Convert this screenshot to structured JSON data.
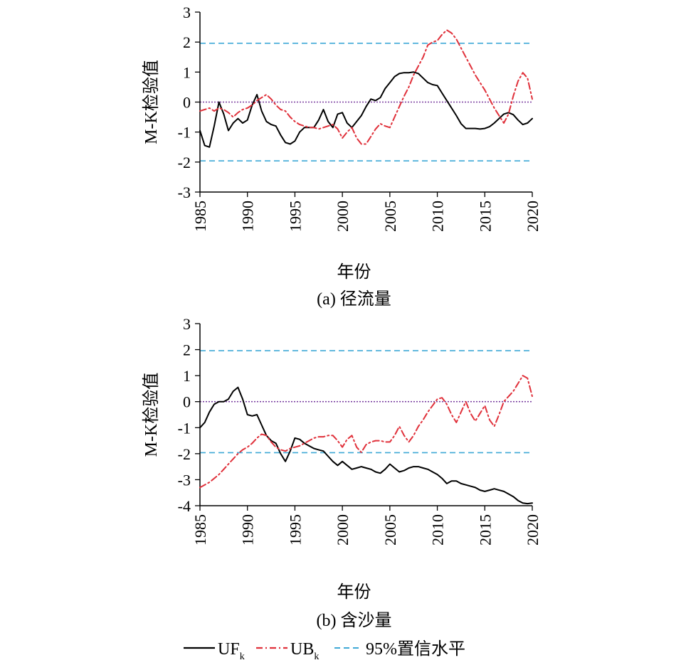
{
  "legend": {
    "uf_label": "UF",
    "uf_sub": "k",
    "ub_label": "UB",
    "ub_sub": "k",
    "conf_label": "95%置信水平"
  },
  "colors": {
    "uf": "#000000",
    "ub": "#e0303a",
    "conf": "#3fa9d6",
    "zero": "#7a3fa0"
  },
  "chart_data": [
    {
      "type": "line",
      "caption": "(a) 径流量",
      "xlabel": "年份",
      "ylabel": "M-K检验值",
      "xlim": [
        1985,
        2020
      ],
      "ylim": [
        -3,
        3
      ],
      "xticks": [
        1985,
        1990,
        1995,
        2000,
        2005,
        2010,
        2015,
        2020
      ],
      "yticks": [
        -3,
        -2,
        -1,
        0,
        1,
        2,
        3
      ],
      "confidence_lines": [
        1.96,
        -1.96
      ],
      "zero_line": 0,
      "series": [
        {
          "name": "UF",
          "style": "solid",
          "x": [
            1985,
            1985.5,
            1986,
            1986.5,
            1987,
            1987.5,
            1988,
            1988.5,
            1989,
            1989.5,
            1990,
            1990.5,
            1991,
            1991.5,
            1992,
            1992.5,
            1993,
            1993.5,
            1994,
            1994.5,
            1995,
            1995.5,
            1996,
            1996.5,
            1997,
            1997.5,
            1998,
            1998.5,
            1999,
            1999.5,
            2000,
            2000.5,
            2001,
            2001.5,
            2002,
            2002.5,
            2003,
            2003.5,
            2004,
            2004.5,
            2005,
            2005.5,
            2006,
            2006.5,
            2007,
            2007.5,
            2008,
            2008.5,
            2009,
            2009.5,
            2010,
            2010.5,
            2011,
            2011.5,
            2012,
            2012.5,
            2013,
            2013.5,
            2014,
            2014.5,
            2015,
            2015.5,
            2016,
            2016.5,
            2017,
            2017.5,
            2018,
            2018.5,
            2019,
            2019.5,
            2020
          ],
          "y": [
            -0.95,
            -1.45,
            -1.5,
            -0.8,
            0.0,
            -0.4,
            -0.95,
            -0.7,
            -0.55,
            -0.7,
            -0.6,
            -0.1,
            0.25,
            -0.3,
            -0.65,
            -0.75,
            -0.8,
            -1.1,
            -1.35,
            -1.4,
            -1.3,
            -1.0,
            -0.85,
            -0.85,
            -0.85,
            -0.6,
            -0.25,
            -0.65,
            -0.85,
            -0.4,
            -0.35,
            -0.7,
            -0.85,
            -0.65,
            -0.45,
            -0.15,
            0.1,
            0.05,
            0.15,
            0.45,
            0.65,
            0.85,
            0.95,
            0.98,
            0.98,
            1.0,
            0.95,
            0.8,
            0.65,
            0.58,
            0.55,
            0.3,
            0.05,
            -0.2,
            -0.45,
            -0.72,
            -0.88,
            -0.88,
            -0.88,
            -0.9,
            -0.88,
            -0.82,
            -0.7,
            -0.55,
            -0.4,
            -0.35,
            -0.42,
            -0.6,
            -0.75,
            -0.7,
            -0.55
          ]
        },
        {
          "name": "UB",
          "style": "dashdot",
          "x": [
            1985,
            1985.5,
            1986,
            1986.5,
            1987,
            1987.5,
            1988,
            1988.5,
            1989,
            1989.5,
            1990,
            1990.5,
            1991,
            1991.5,
            1992,
            1992.5,
            1993,
            1993.5,
            1994,
            1994.5,
            1995,
            1995.5,
            1996,
            1996.5,
            1997,
            1997.5,
            1998,
            1998.5,
            1999,
            1999.5,
            2000,
            2000.5,
            2001,
            2001.5,
            2002,
            2002.5,
            2003,
            2003.5,
            2004,
            2004.5,
            2005,
            2005.5,
            2006,
            2006.5,
            2007,
            2007.5,
            2008,
            2008.5,
            2009,
            2009.5,
            2010,
            2010.5,
            2011,
            2011.5,
            2012,
            2012.5,
            2013,
            2013.5,
            2014,
            2014.5,
            2015,
            2015.5,
            2016,
            2016.5,
            2017,
            2017.5,
            2018,
            2018.5,
            2019,
            2019.5,
            2020
          ],
          "y": [
            -0.3,
            -0.25,
            -0.2,
            -0.3,
            -0.2,
            -0.25,
            -0.35,
            -0.5,
            -0.35,
            -0.25,
            -0.2,
            -0.1,
            0.05,
            0.15,
            0.25,
            0.1,
            -0.1,
            -0.25,
            -0.3,
            -0.5,
            -0.65,
            -0.75,
            -0.8,
            -0.85,
            -0.85,
            -0.9,
            -0.85,
            -0.8,
            -0.75,
            -0.9,
            -1.2,
            -1.0,
            -0.85,
            -1.2,
            -1.4,
            -1.4,
            -1.15,
            -0.9,
            -0.72,
            -0.8,
            -0.85,
            -0.5,
            -0.15,
            0.2,
            0.5,
            0.9,
            1.2,
            1.5,
            1.9,
            2.0,
            2.05,
            2.25,
            2.4,
            2.3,
            2.1,
            1.8,
            1.5,
            1.2,
            0.9,
            0.65,
            0.4,
            0.1,
            -0.2,
            -0.45,
            -0.7,
            -0.4,
            0.2,
            0.7,
            0.98,
            0.8,
            0.1
          ]
        }
      ]
    },
    {
      "type": "line",
      "caption": "(b) 含沙量",
      "xlabel": "年份",
      "ylabel": "M-K检验值",
      "xlim": [
        1985,
        2020
      ],
      "ylim": [
        -4,
        3
      ],
      "xticks": [
        1985,
        1990,
        1995,
        2000,
        2005,
        2010,
        2015,
        2020
      ],
      "yticks": [
        -4,
        -3,
        -2,
        -1,
        0,
        1,
        2,
        3
      ],
      "confidence_lines": [
        1.96,
        -1.96
      ],
      "zero_line": 0,
      "series": [
        {
          "name": "UF",
          "style": "solid",
          "x": [
            1985,
            1985.5,
            1986,
            1986.5,
            1987,
            1987.5,
            1988,
            1988.5,
            1989,
            1989.5,
            1990,
            1990.5,
            1991,
            1991.5,
            1992,
            1992.5,
            1993,
            1993.5,
            1994,
            1994.5,
            1995,
            1995.5,
            1996,
            1996.5,
            1997,
            1997.5,
            1998,
            1998.5,
            1999,
            1999.5,
            2000,
            2000.5,
            2001,
            2001.5,
            2002,
            2002.5,
            2003,
            2003.5,
            2004,
            2004.5,
            2005,
            2005.5,
            2006,
            2006.5,
            2007,
            2007.5,
            2008,
            2008.5,
            2009,
            2009.5,
            2010,
            2010.5,
            2011,
            2011.5,
            2012,
            2012.5,
            2013,
            2013.5,
            2014,
            2014.5,
            2015,
            2015.5,
            2016,
            2016.5,
            2017,
            2017.5,
            2018,
            2018.5,
            2019,
            2019.5,
            2020
          ],
          "y": [
            -1.0,
            -0.8,
            -0.4,
            -0.1,
            0.0,
            0.0,
            0.1,
            0.4,
            0.55,
            0.1,
            -0.5,
            -0.55,
            -0.5,
            -0.9,
            -1.3,
            -1.5,
            -1.6,
            -2.0,
            -2.3,
            -1.9,
            -1.4,
            -1.45,
            -1.6,
            -1.7,
            -1.8,
            -1.85,
            -1.9,
            -2.1,
            -2.3,
            -2.45,
            -2.3,
            -2.45,
            -2.6,
            -2.55,
            -2.5,
            -2.55,
            -2.6,
            -2.7,
            -2.75,
            -2.6,
            -2.4,
            -2.55,
            -2.7,
            -2.65,
            -2.55,
            -2.5,
            -2.5,
            -2.55,
            -2.6,
            -2.7,
            -2.8,
            -2.95,
            -3.15,
            -3.05,
            -3.05,
            -3.15,
            -3.2,
            -3.25,
            -3.3,
            -3.4,
            -3.45,
            -3.4,
            -3.35,
            -3.4,
            -3.45,
            -3.55,
            -3.65,
            -3.8,
            -3.9,
            -3.92,
            -3.9
          ]
        },
        {
          "name": "UB",
          "style": "dashdot",
          "x": [
            1985,
            1985.5,
            1986,
            1986.5,
            1987,
            1987.5,
            1988,
            1988.5,
            1989,
            1989.5,
            1990,
            1990.5,
            1991,
            1991.5,
            1992,
            1992.5,
            1993,
            1993.5,
            1994,
            1994.5,
            1995,
            1995.5,
            1996,
            1996.5,
            1997,
            1997.5,
            1998,
            1998.5,
            1999,
            1999.5,
            2000,
            2000.5,
            2001,
            2001.5,
            2002,
            2002.5,
            2003,
            2003.5,
            2004,
            2004.5,
            2005,
            2005.5,
            2006,
            2006.5,
            2007,
            2007.5,
            2008,
            2008.5,
            2009,
            2009.5,
            2010,
            2010.5,
            2011,
            2011.5,
            2012,
            2012.5,
            2013,
            2013.5,
            2014,
            2014.5,
            2015,
            2015.5,
            2016,
            2016.5,
            2017,
            2017.5,
            2018,
            2018.5,
            2019,
            2019.5,
            2020
          ],
          "y": [
            -3.3,
            -3.2,
            -3.1,
            -2.95,
            -2.8,
            -2.6,
            -2.4,
            -2.2,
            -2.0,
            -1.85,
            -1.75,
            -1.6,
            -1.4,
            -1.25,
            -1.3,
            -1.55,
            -1.75,
            -1.85,
            -1.9,
            -1.8,
            -1.75,
            -1.7,
            -1.6,
            -1.5,
            -1.4,
            -1.35,
            -1.35,
            -1.3,
            -1.3,
            -1.5,
            -1.75,
            -1.45,
            -1.3,
            -1.75,
            -1.95,
            -1.65,
            -1.55,
            -1.5,
            -1.5,
            -1.55,
            -1.55,
            -1.3,
            -0.95,
            -1.3,
            -1.55,
            -1.3,
            -0.95,
            -0.7,
            -0.4,
            -0.15,
            0.1,
            0.15,
            -0.1,
            -0.5,
            -0.8,
            -0.4,
            0.0,
            -0.45,
            -0.75,
            -0.45,
            -0.15,
            -0.7,
            -0.95,
            -0.5,
            0.0,
            0.2,
            0.4,
            0.7,
            1.0,
            0.9,
            0.2
          ]
        }
      ]
    }
  ]
}
